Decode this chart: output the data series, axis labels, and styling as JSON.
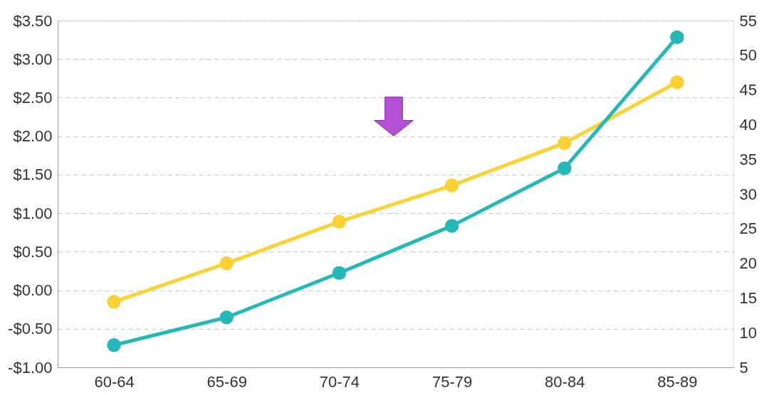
{
  "chart_data": {
    "type": "line",
    "categories": [
      "60-64",
      "65-69",
      "70-74",
      "75-79",
      "80-84",
      "85-89"
    ],
    "series": [
      {
        "color": "#fbd234",
        "values": [
          -0.15,
          0.35,
          0.89,
          1.36,
          1.91,
          2.7
        ]
      },
      {
        "color": "#25b8b8",
        "axis": "y2",
        "values": [
          8.2,
          12.2,
          18.6,
          25.4,
          33.7,
          52.6
        ]
      }
    ],
    "ylim": [
      -1.0,
      3.5
    ],
    "yticks": [
      {
        "value": -1.0,
        "label": "-$1.00"
      },
      {
        "value": -0.5,
        "label": "-$0.50"
      },
      {
        "value": 0.0,
        "label": "$0.00"
      },
      {
        "value": 0.5,
        "label": "$0.50"
      },
      {
        "value": 1.0,
        "label": "$1.00"
      },
      {
        "value": 1.5,
        "label": "$1.50"
      },
      {
        "value": 2.0,
        "label": "$2.00"
      },
      {
        "value": 2.5,
        "label": "$2.50"
      },
      {
        "value": 3.0,
        "label": "$3.00"
      },
      {
        "value": 3.5,
        "label": "$3.50"
      }
    ],
    "y2lim": [
      5,
      55
    ],
    "y2ticks": [
      5,
      10,
      15,
      20,
      25,
      30,
      35,
      40,
      45,
      50,
      55
    ],
    "grid": "y",
    "marker": "circle",
    "line_style": "solid"
  }
}
